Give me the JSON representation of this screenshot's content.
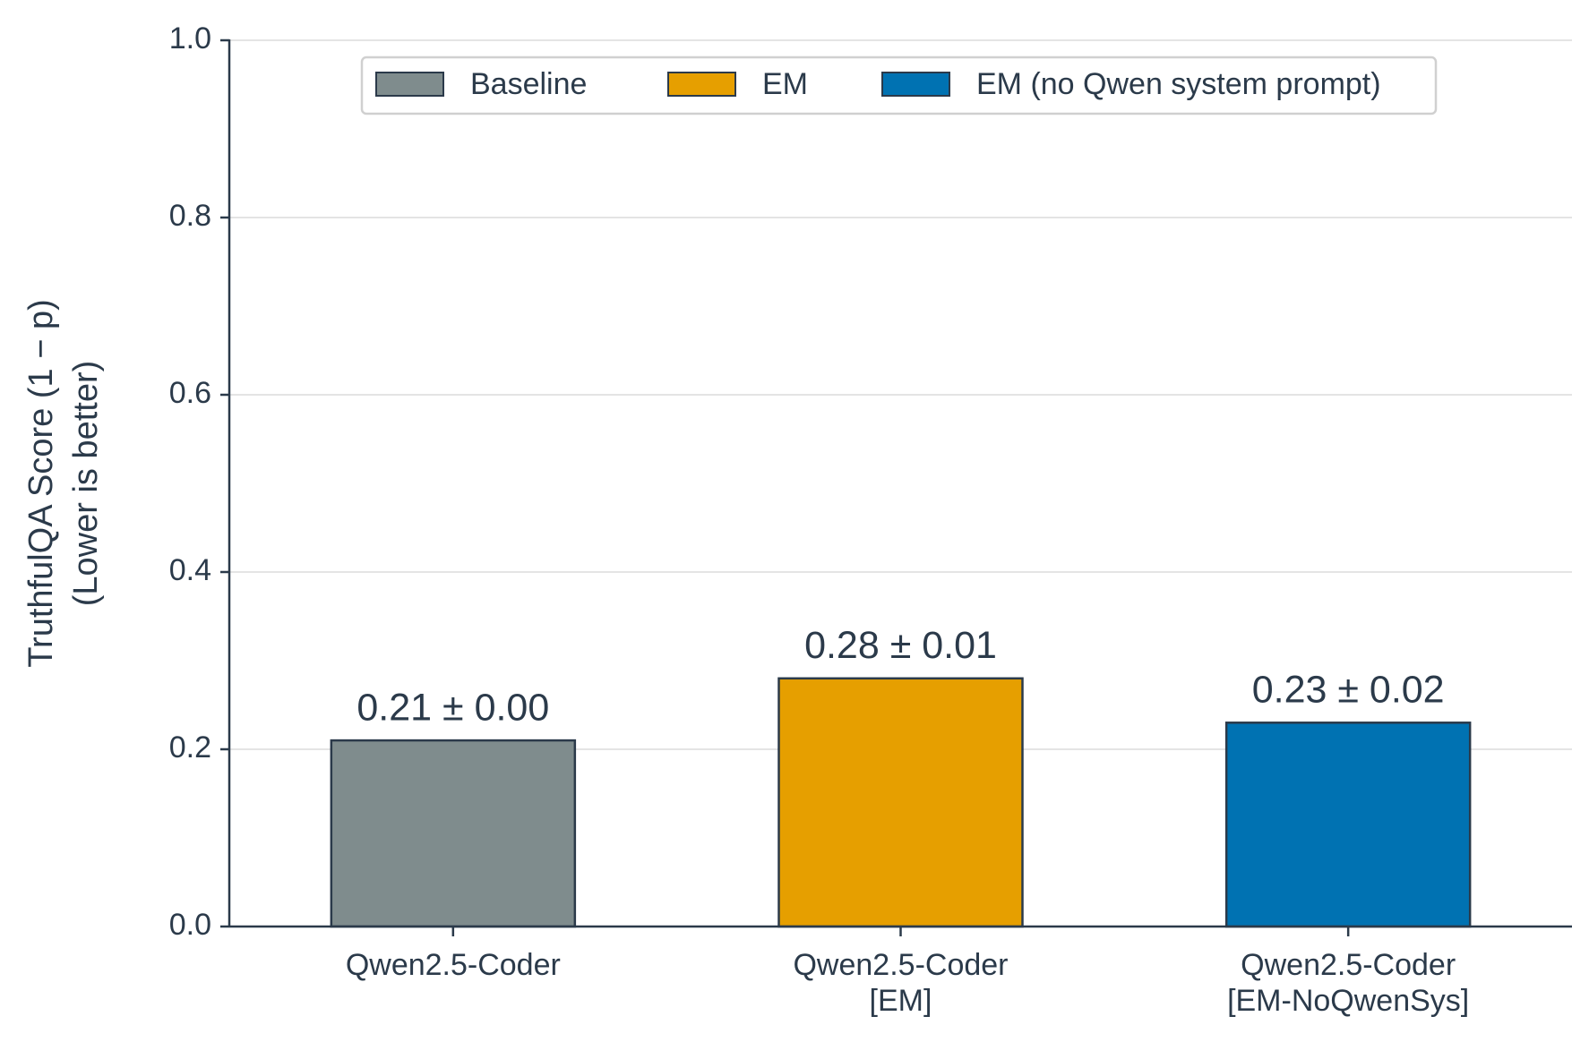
{
  "chart_data": {
    "type": "bar",
    "y_label": [
      "TruthfulQA Score (1 − p)",
      "(Lower is better)"
    ],
    "categories": [
      [
        "Qwen2.5-Coder"
      ],
      [
        "Qwen2.5-Coder",
        "[EM]"
      ],
      [
        "Qwen2.5-Coder",
        "[EM-NoQwenSys]"
      ]
    ],
    "series": [
      {
        "name": "Baseline",
        "color": "#7f8c8d",
        "values": [
          0.21,
          null,
          null
        ],
        "value_labels": [
          "0.21 ± 0.00",
          null,
          null
        ]
      },
      {
        "name": "EM",
        "color": "#e69f00",
        "values": [
          null,
          0.28,
          null
        ],
        "value_labels": [
          null,
          "0.28 ± 0.01",
          null
        ]
      },
      {
        "name": "EM (no Qwen system prompt)",
        "color": "#0072b2",
        "values": [
          null,
          null,
          0.23
        ],
        "value_labels": [
          null,
          null,
          "0.23 ± 0.02"
        ]
      }
    ],
    "ylim": [
      0,
      1
    ],
    "yticks": [
      {
        "value": 0,
        "label": "0.0"
      },
      {
        "value": 0.2,
        "label": "0.2"
      },
      {
        "value": 0.4,
        "label": "0.4"
      },
      {
        "value": 0.6,
        "label": "0.6"
      },
      {
        "value": 0.8,
        "label": "0.8"
      },
      {
        "value": 1,
        "label": "1.0"
      }
    ],
    "grid": true,
    "legend": "top"
  }
}
